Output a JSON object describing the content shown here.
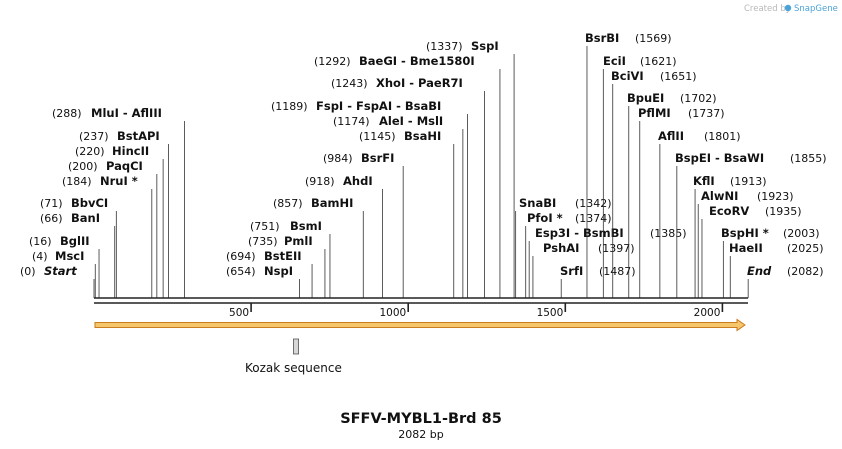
{
  "map": {
    "title": "SFFV-MYBL1-Brd 85",
    "length_label": "2082 bp",
    "total_bp": 2082,
    "credit_prefix": "Created by",
    "credit_brand": "SnapGene",
    "brand_color": "#4aa3d8",
    "backbone_color": "#222222",
    "arrow_fill": "#f6c66b",
    "arrow_stroke": "#c97b1f",
    "axis_ticks": [
      "500",
      "1000",
      "1500",
      "2000"
    ],
    "feature": {
      "name": "Kozak sequence",
      "start": 638,
      "end": 648
    }
  },
  "sites": [
    {
      "pos": 0,
      "pos_label": "(0)",
      "names": [
        "Start"
      ],
      "italic": true
    },
    {
      "pos": 4,
      "pos_label": "(4)",
      "names": [
        "MscI"
      ]
    },
    {
      "pos": 16,
      "pos_label": "(16)",
      "names": [
        "BglII"
      ]
    },
    {
      "pos": 66,
      "pos_label": "(66)",
      "names": [
        "BanI"
      ]
    },
    {
      "pos": 71,
      "pos_label": "(71)",
      "names": [
        "BbvCI"
      ]
    },
    {
      "pos": 184,
      "pos_label": "(184)",
      "names": [
        "NruI *"
      ]
    },
    {
      "pos": 200,
      "pos_label": "(200)",
      "names": [
        "PaqCI"
      ]
    },
    {
      "pos": 220,
      "pos_label": "(220)",
      "names": [
        "HincII"
      ]
    },
    {
      "pos": 237,
      "pos_label": "(237)",
      "names": [
        "BstAPI"
      ]
    },
    {
      "pos": 288,
      "pos_label": "(288)",
      "names": [
        "MluI",
        "AflIII"
      ]
    },
    {
      "pos": 654,
      "pos_label": "(654)",
      "names": [
        "NspI"
      ]
    },
    {
      "pos": 694,
      "pos_label": "(694)",
      "names": [
        "BstEII"
      ]
    },
    {
      "pos": 735,
      "pos_label": "(735)",
      "names": [
        "PmlI"
      ]
    },
    {
      "pos": 751,
      "pos_label": "(751)",
      "names": [
        "BsmI"
      ]
    },
    {
      "pos": 857,
      "pos_label": "(857)",
      "names": [
        "BamHI"
      ]
    },
    {
      "pos": 918,
      "pos_label": "(918)",
      "names": [
        "AhdI"
      ]
    },
    {
      "pos": 984,
      "pos_label": "(984)",
      "names": [
        "BsrFI"
      ]
    },
    {
      "pos": 1145,
      "pos_label": "(1145)",
      "names": [
        "BsaHI"
      ]
    },
    {
      "pos": 1174,
      "pos_label": "(1174)",
      "names": [
        "AleI",
        "MslI"
      ]
    },
    {
      "pos": 1189,
      "pos_label": "(1189)",
      "names": [
        "FspI",
        "FspAI",
        "BsaBI"
      ]
    },
    {
      "pos": 1243,
      "pos_label": "(1243)",
      "names": [
        "XhoI",
        "PaeR7I"
      ]
    },
    {
      "pos": 1292,
      "pos_label": "(1292)",
      "names": [
        "BaeGI",
        "Bme1580I"
      ]
    },
    {
      "pos": 1337,
      "pos_label": "(1337)",
      "names": [
        "SspI"
      ]
    },
    {
      "pos": 1342,
      "pos_label": "(1342)",
      "names": [
        "SnaBI"
      ]
    },
    {
      "pos": 1374,
      "pos_label": "(1374)",
      "names": [
        "PfoI *"
      ]
    },
    {
      "pos": 1385,
      "pos_label": "(1385)",
      "names": [
        "Esp3I",
        "BsmBI"
      ]
    },
    {
      "pos": 1397,
      "pos_label": "(1397)",
      "names": [
        "PshAI"
      ]
    },
    {
      "pos": 1487,
      "pos_label": "(1487)",
      "names": [
        "SrfI"
      ]
    },
    {
      "pos": 1569,
      "pos_label": "(1569)",
      "names": [
        "BsrBI"
      ]
    },
    {
      "pos": 1621,
      "pos_label": "(1621)",
      "names": [
        "EciI"
      ]
    },
    {
      "pos": 1651,
      "pos_label": "(1651)",
      "names": [
        "BciVI"
      ]
    },
    {
      "pos": 1702,
      "pos_label": "(1702)",
      "names": [
        "BpuEI"
      ]
    },
    {
      "pos": 1737,
      "pos_label": "(1737)",
      "names": [
        "PflMI"
      ]
    },
    {
      "pos": 1801,
      "pos_label": "(1801)",
      "names": [
        "AflII"
      ]
    },
    {
      "pos": 1855,
      "pos_label": "(1855)",
      "names": [
        "BspEI",
        "BsaWI"
      ]
    },
    {
      "pos": 1913,
      "pos_label": "(1913)",
      "names": [
        "KflI"
      ]
    },
    {
      "pos": 1923,
      "pos_label": "(1923)",
      "names": [
        "AlwNI"
      ]
    },
    {
      "pos": 1935,
      "pos_label": "(1935)",
      "names": [
        "EcoRV"
      ]
    },
    {
      "pos": 2003,
      "pos_label": "(2003)",
      "names": [
        "BspHI *"
      ]
    },
    {
      "pos": 2025,
      "pos_label": "(2025)",
      "names": [
        "HaeII"
      ]
    },
    {
      "pos": 2082,
      "pos_label": "(2082)",
      "names": [
        "End"
      ],
      "italic": true
    }
  ]
}
